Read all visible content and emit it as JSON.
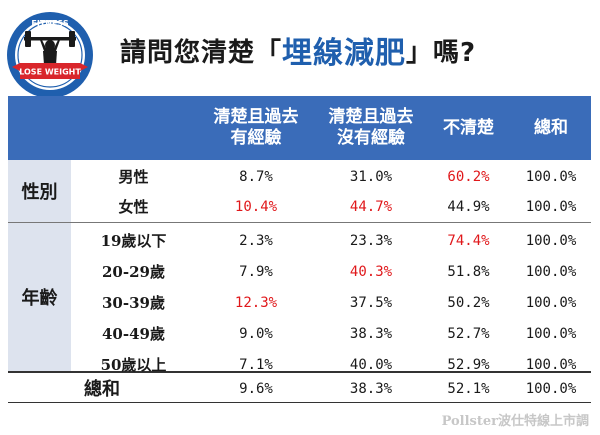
{
  "logo": {
    "top_text": "FITNESS",
    "ribbon_text": "LOSE WEIGHT",
    "icon": "weightlifter-icon",
    "colors": {
      "ring": "#1f5fae",
      "ribbon": "#d9262b"
    }
  },
  "title": {
    "prefix": "請問您清楚「",
    "keyword": "埋線減肥",
    "suffix": "」嗎?"
  },
  "table": {
    "headers": [
      {
        "line1": "清楚且過去",
        "line2": "有經驗"
      },
      {
        "line1": "清楚且過去",
        "line2": "沒有經驗"
      },
      {
        "line1": "不清楚",
        "line2": ""
      },
      {
        "line1": "總和",
        "line2": ""
      }
    ],
    "groups": [
      {
        "label": "性別",
        "rows": [
          {
            "label": "男性",
            "values": [
              "8.7%",
              "31.0%",
              "60.2%",
              "100.0%"
            ],
            "highlight": [
              false,
              false,
              true,
              false
            ]
          },
          {
            "label": "女性",
            "values": [
              "10.4%",
              "44.7%",
              "44.9%",
              "100.0%"
            ],
            "highlight": [
              true,
              true,
              false,
              false
            ]
          }
        ]
      },
      {
        "label": "年齡",
        "rows": [
          {
            "label": "19歲以下",
            "values": [
              "2.3%",
              "23.3%",
              "74.4%",
              "100.0%"
            ],
            "highlight": [
              false,
              false,
              true,
              false
            ]
          },
          {
            "label": "20-29歲",
            "values": [
              "7.9%",
              "40.3%",
              "51.8%",
              "100.0%"
            ],
            "highlight": [
              false,
              true,
              false,
              false
            ]
          },
          {
            "label": "30-39歲",
            "values": [
              "12.3%",
              "37.5%",
              "50.2%",
              "100.0%"
            ],
            "highlight": [
              true,
              false,
              false,
              false
            ]
          },
          {
            "label": "40-49歲",
            "values": [
              "9.0%",
              "38.3%",
              "52.7%",
              "100.0%"
            ],
            "highlight": [
              false,
              false,
              false,
              false
            ]
          },
          {
            "label": "50歲以上",
            "values": [
              "7.1%",
              "40.0%",
              "52.9%",
              "100.0%"
            ],
            "highlight": [
              false,
              false,
              false,
              false
            ]
          }
        ]
      }
    ],
    "total": {
      "label": "總和",
      "values": [
        "9.6%",
        "38.3%",
        "52.1%",
        "100.0%"
      ]
    },
    "colors": {
      "header_bg": "#3a6cb9",
      "group_bg": "#dde3ee",
      "highlight": "#e0181b"
    }
  },
  "chart_data": {
    "type": "table",
    "title": "請問您清楚「埋線減肥」嗎?",
    "columns": [
      "清楚且過去有經驗",
      "清楚且過去沒有經驗",
      "不清楚",
      "總和"
    ],
    "rows": [
      {
        "group": "性別",
        "label": "男性",
        "values": [
          8.7,
          31.0,
          60.2,
          100.0
        ]
      },
      {
        "group": "性別",
        "label": "女性",
        "values": [
          10.4,
          44.7,
          44.9,
          100.0
        ]
      },
      {
        "group": "年齡",
        "label": "19歲以下",
        "values": [
          2.3,
          23.3,
          74.4,
          100.0
        ]
      },
      {
        "group": "年齡",
        "label": "20-29歲",
        "values": [
          7.9,
          40.3,
          51.8,
          100.0
        ]
      },
      {
        "group": "年齡",
        "label": "30-39歲",
        "values": [
          12.3,
          37.5,
          50.2,
          100.0
        ]
      },
      {
        "group": "年齡",
        "label": "40-49歲",
        "values": [
          9.0,
          38.3,
          52.7,
          100.0
        ]
      },
      {
        "group": "年齡",
        "label": "50歲以上",
        "values": [
          7.1,
          40.0,
          52.9,
          100.0
        ]
      },
      {
        "group": "",
        "label": "總和",
        "values": [
          9.6,
          38.3,
          52.1,
          100.0
        ]
      }
    ],
    "unit": "%"
  },
  "watermark": "Pollster波仕特線上市調"
}
